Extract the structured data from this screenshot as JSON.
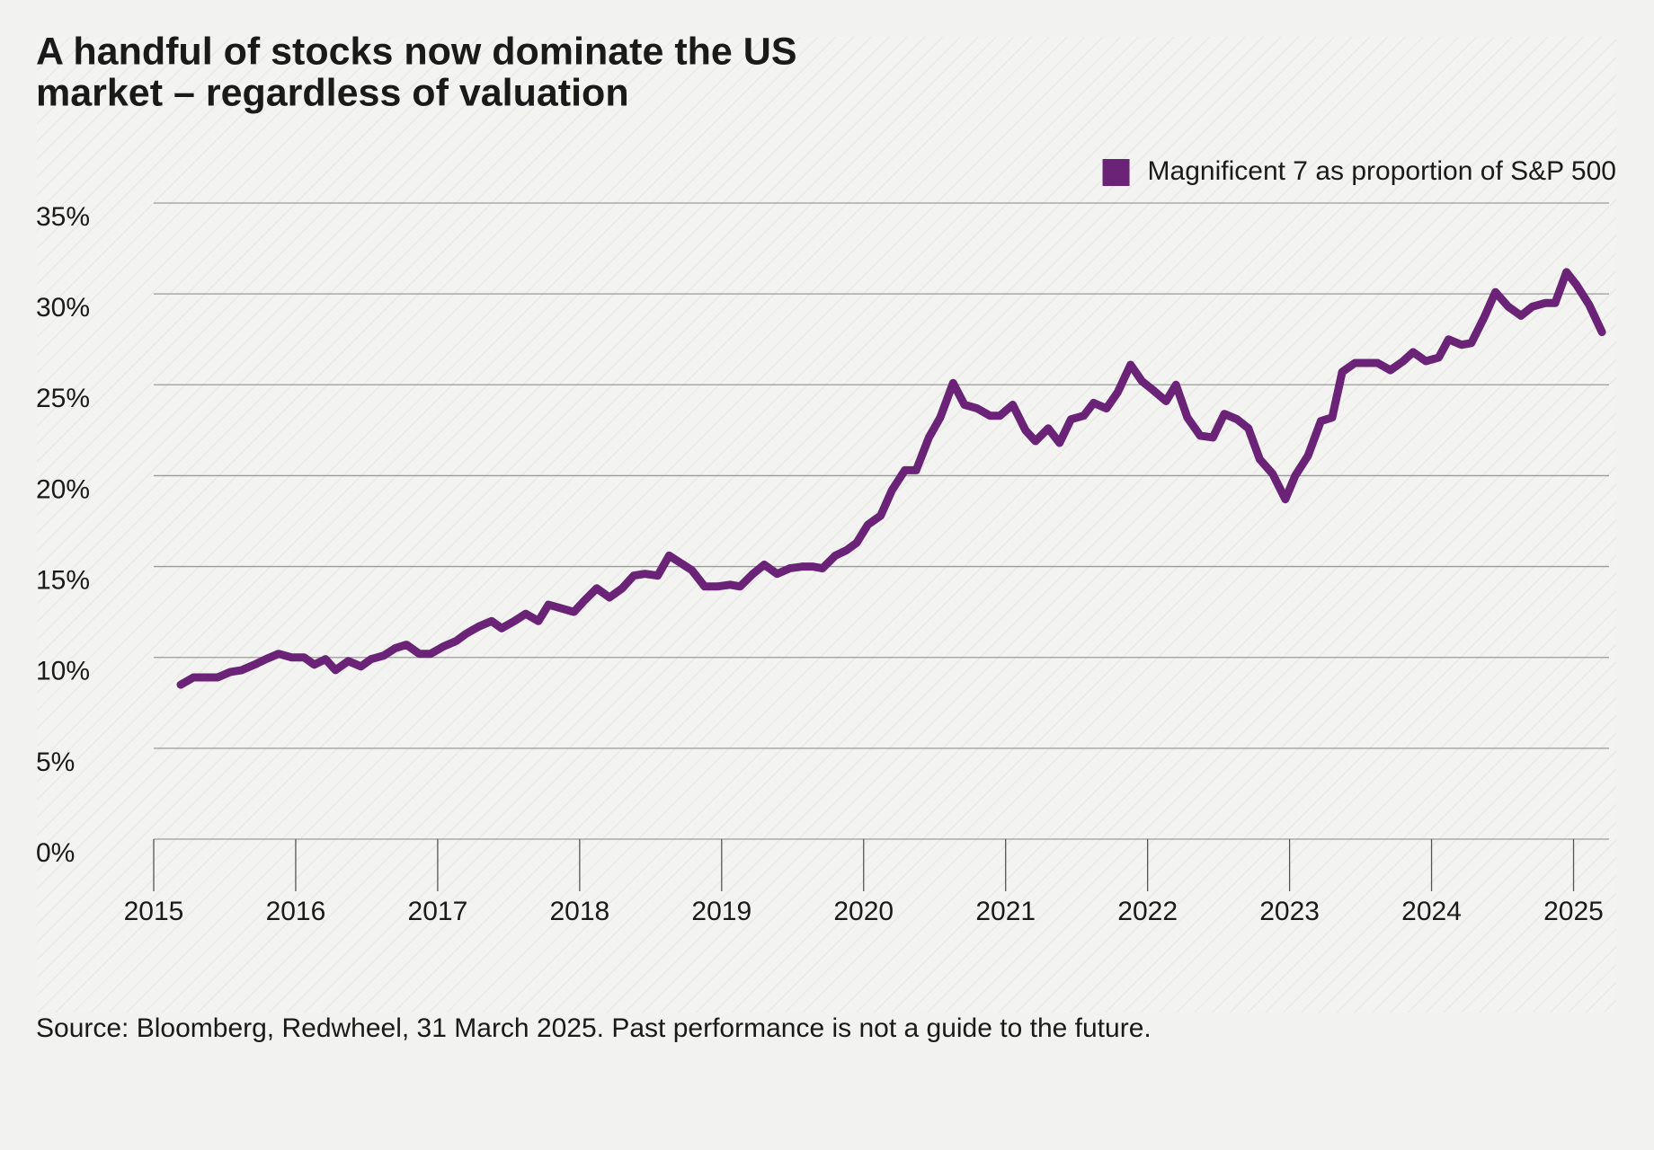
{
  "chart_data": {
    "type": "line",
    "title": [
      "A handful of stocks now dominate the US",
      "market – regardless of valuation"
    ],
    "source": "Source: Bloomberg, Redwheel, 31 March 2025. Past performance is not a guide to the future.",
    "x": [
      2015.19,
      2015.28,
      2015.45,
      2015.54,
      2015.62,
      2015.71,
      2015.79,
      2015.88,
      2015.97,
      2016.06,
      2016.13,
      2016.21,
      2016.28,
      2016.37,
      2016.46,
      2016.53,
      2016.62,
      2016.7,
      2016.78,
      2016.87,
      2016.95,
      2017.04,
      2017.13,
      2017.2,
      2017.29,
      2017.38,
      2017.45,
      2017.54,
      2017.62,
      2017.71,
      2017.78,
      2017.87,
      2017.96,
      2018.03,
      2018.12,
      2018.21,
      2018.3,
      2018.38,
      2018.46,
      2018.55,
      2018.63,
      2018.71,
      2018.79,
      2018.88,
      2018.97,
      2019.06,
      2019.13,
      2019.22,
      2019.3,
      2019.39,
      2019.48,
      2019.57,
      2019.64,
      2019.71,
      2019.8,
      2019.88,
      2019.95,
      2020.03,
      2020.12,
      2020.2,
      2020.29,
      2020.37,
      2020.46,
      2020.54,
      2020.63,
      2020.71,
      2020.8,
      2020.89,
      2020.96,
      2021.05,
      2021.14,
      2021.21,
      2021.3,
      2021.38,
      2021.46,
      2021.55,
      2021.62,
      2021.71,
      2021.79,
      2021.88,
      2021.96,
      2022.04,
      2022.13,
      2022.2,
      2022.28,
      2022.37,
      2022.46,
      2022.54,
      2022.63,
      2022.71,
      2022.79,
      2022.88,
      2022.97,
      2023.04,
      2023.13,
      2023.22,
      2023.3,
      2023.37,
      2023.46,
      2023.55,
      2023.62,
      2023.71,
      2023.8,
      2023.87,
      2023.96,
      2024.05,
      2024.12,
      2024.21,
      2024.28,
      2024.37,
      2024.45,
      2024.54,
      2024.63,
      2024.71,
      2024.8,
      2024.87,
      2024.95,
      2025.02,
      2025.11,
      2025.2
    ],
    "series": [
      {
        "name": "Magnificent 7 as proportion of S&P 500",
        "color": "#6b2377",
        "values": [
          8.5,
          8.9,
          8.9,
          9.2,
          9.3,
          9.6,
          9.9,
          10.2,
          10.0,
          10.0,
          9.6,
          9.9,
          9.3,
          9.8,
          9.5,
          9.9,
          10.1,
          10.5,
          10.7,
          10.2,
          10.2,
          10.6,
          10.9,
          11.3,
          11.7,
          12.0,
          11.6,
          12.0,
          12.4,
          12.0,
          12.9,
          12.7,
          12.5,
          13.1,
          13.8,
          13.3,
          13.8,
          14.5,
          14.6,
          14.5,
          15.6,
          15.2,
          14.8,
          13.9,
          13.9,
          14.0,
          13.9,
          14.6,
          15.1,
          14.6,
          14.9,
          15.0,
          15.0,
          14.9,
          15.6,
          15.9,
          16.3,
          17.3,
          17.8,
          19.2,
          20.3,
          20.3,
          22.1,
          23.2,
          25.1,
          23.9,
          23.7,
          23.3,
          23.3,
          23.9,
          22.5,
          21.9,
          22.6,
          21.8,
          23.1,
          23.3,
          24.0,
          23.7,
          24.6,
          26.1,
          25.2,
          24.7,
          24.1,
          25.0,
          23.2,
          22.2,
          22.1,
          23.4,
          23.1,
          22.6,
          20.9,
          20.1,
          18.7,
          20.0,
          21.1,
          23.0,
          23.2,
          25.7,
          26.2,
          26.2,
          26.2,
          25.8,
          26.3,
          26.8,
          26.3,
          26.5,
          27.5,
          27.2,
          27.3,
          28.7,
          30.1,
          29.3,
          28.8,
          29.3,
          29.5,
          29.5,
          31.2,
          30.5,
          29.4,
          27.9
        ]
      }
    ],
    "xlim": [
      2015,
      2025.25
    ],
    "xticks": [
      2015,
      2016,
      2017,
      2018,
      2019,
      2020,
      2021,
      2022,
      2023,
      2024,
      2025
    ],
    "ylim": [
      0,
      35
    ],
    "yticks": [
      {
        "value": 0,
        "label": "0%"
      },
      {
        "value": 5,
        "label": "5%"
      },
      {
        "value": 10,
        "label": "10%"
      },
      {
        "value": 15,
        "label": "15%"
      },
      {
        "value": 20,
        "label": "20%"
      },
      {
        "value": 25,
        "label": "25%"
      },
      {
        "value": 30,
        "label": "30%"
      },
      {
        "value": 35,
        "label": "35%"
      }
    ],
    "grid": true,
    "legend": "top-right"
  }
}
